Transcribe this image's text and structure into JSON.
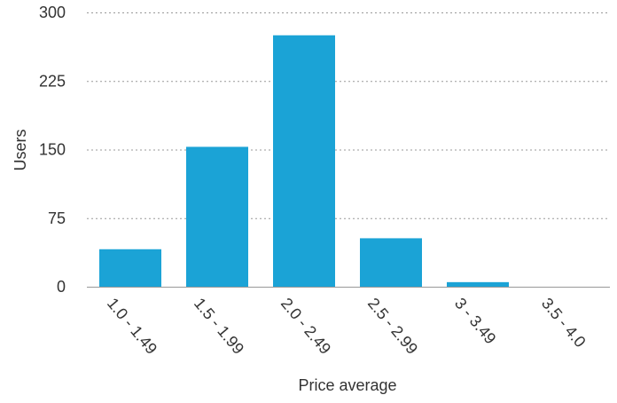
{
  "chart_data": {
    "type": "bar",
    "title": "",
    "xlabel": "Price average",
    "ylabel": "Users",
    "categories": [
      "1.0 - 1.49",
      "1.5 - 1.99",
      "2.0 - 2.49",
      "2.5 - 2.99",
      "3 - 3.49",
      "3.5 - 4.0"
    ],
    "values": [
      41,
      153,
      275,
      53,
      5,
      0
    ],
    "ylim": [
      0,
      300
    ],
    "yticks": [
      "0",
      "75",
      "150",
      "225",
      "300"
    ],
    "grid": true,
    "bar_color": "#1ba3d6"
  }
}
